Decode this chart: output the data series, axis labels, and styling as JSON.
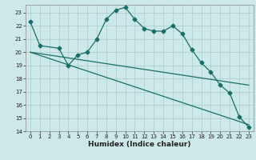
{
  "line1_x": [
    0,
    1,
    3,
    4,
    5,
    6,
    7,
    8,
    9,
    10,
    11,
    12,
    13,
    14,
    15,
    16,
    17,
    18,
    19,
    20,
    21,
    22,
    23
  ],
  "line1_y": [
    22.3,
    20.5,
    20.3,
    19.0,
    19.8,
    20.0,
    21.0,
    22.5,
    23.2,
    23.4,
    22.5,
    21.8,
    21.6,
    21.6,
    22.0,
    21.4,
    20.2,
    19.2,
    18.5,
    17.5,
    16.9,
    15.1,
    14.3
  ],
  "line2_x": [
    0,
    23
  ],
  "line2_y": [
    20.0,
    17.5
  ],
  "line3_x": [
    0,
    23
  ],
  "line3_y": [
    20.0,
    14.5
  ],
  "bg_color": "#cce8e8",
  "grid_color": "#aacccc",
  "line_color": "#1a6e6a",
  "xlim": [
    -0.5,
    23.5
  ],
  "ylim": [
    14,
    23.6
  ],
  "yticks": [
    14,
    15,
    16,
    17,
    18,
    19,
    20,
    21,
    22,
    23
  ],
  "xticks": [
    0,
    1,
    2,
    3,
    4,
    5,
    6,
    7,
    8,
    9,
    10,
    11,
    12,
    13,
    14,
    15,
    16,
    17,
    18,
    19,
    20,
    21,
    22,
    23
  ],
  "xlabel": "Humidex (Indice chaleur)",
  "xlabel_fontsize": 6.5,
  "tick_labelsize": 5,
  "lw": 0.9,
  "ms": 2.5
}
